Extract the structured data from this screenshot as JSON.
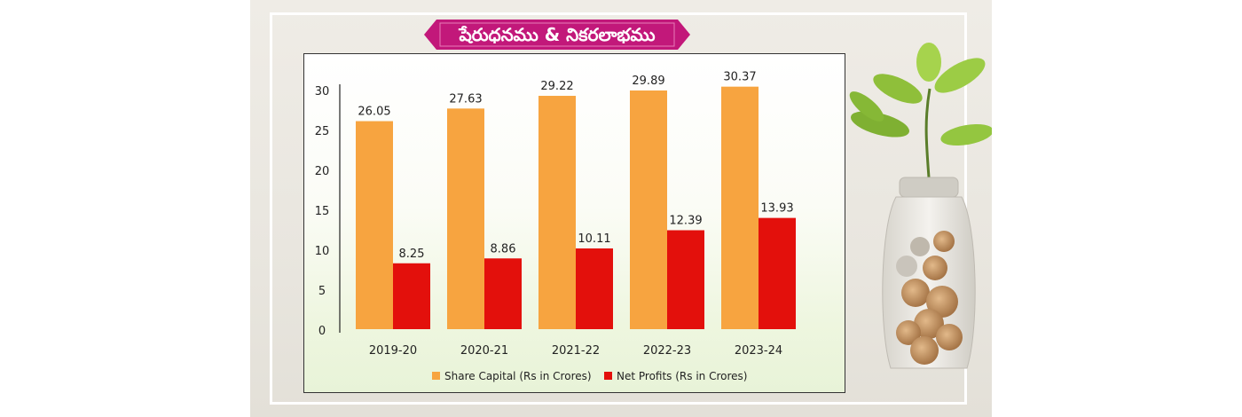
{
  "title": "షేరుధనము & నికరలాభము",
  "colors": {
    "share_capital": "#f7a440",
    "net_profits": "#e3100c",
    "banner": "#c2187a"
  },
  "chart_data": {
    "type": "bar",
    "categories": [
      "2019-20",
      "2020-21",
      "2021-22",
      "2022-23",
      "2023-24"
    ],
    "series": [
      {
        "name": "Share Capital (Rs in Crores)",
        "values": [
          26.05,
          27.63,
          29.22,
          29.89,
          30.37
        ]
      },
      {
        "name": "Net Profits (Rs in Crores)",
        "values": [
          8.25,
          8.86,
          10.11,
          12.39,
          13.93
        ]
      }
    ],
    "data_labels": [
      [
        "26.05",
        "27.63",
        "29.22",
        "29.89",
        "30.37"
      ],
      [
        "8.25",
        "8.86",
        "10.11",
        "12.39",
        "13.93"
      ]
    ],
    "y_ticks": [
      "0",
      "5",
      "10",
      "15",
      "20",
      "25",
      "30"
    ],
    "ylim": [
      0,
      30
    ],
    "grid": false,
    "legend_position": "bottom"
  }
}
